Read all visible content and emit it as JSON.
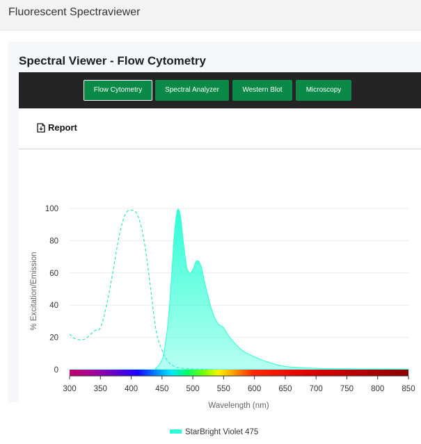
{
  "app": {
    "title": "Fluorescent Spectraviewer"
  },
  "panel": {
    "title": "Spectral Viewer - Flow Cytometry"
  },
  "nav": {
    "tabs": [
      {
        "label": "Flow Cytometry",
        "active": true
      },
      {
        "label": "Spectral Analyzer",
        "active": false
      },
      {
        "label": "Western Blot",
        "active": false
      },
      {
        "label": "Microscopy",
        "active": false
      }
    ]
  },
  "toolbar": {
    "report_label": "Report",
    "report_icon": "document-export-icon"
  },
  "colors": {
    "nav_green": "#0a8a46",
    "series": "#2fffd6",
    "navbar_bg": "#242424"
  },
  "chart_data": {
    "type": "area",
    "xlabel": "Wavelength (nm)",
    "ylabel": "% Excitation/Emission",
    "xlim": [
      300,
      850
    ],
    "ylim": [
      0,
      100
    ],
    "xticks": [
      300,
      350,
      400,
      450,
      500,
      550,
      600,
      650,
      700,
      750,
      800,
      850
    ],
    "yticks": [
      0,
      20,
      40,
      60,
      80,
      100
    ],
    "grid": true,
    "legend_position": "bottom",
    "series": [
      {
        "name": "StarBright Violet 475",
        "kind": "excitation",
        "style": "dashed",
        "x": [
          300,
          310,
          325,
          340,
          350,
          360,
          370,
          380,
          390,
          400,
          410,
          420,
          430,
          440,
          450,
          460,
          470,
          480,
          500,
          550,
          600,
          650,
          700,
          750,
          800,
          850
        ],
        "y": [
          22,
          19,
          19,
          24,
          26,
          40,
          60,
          82,
          96,
          99,
          96,
          82,
          55,
          25,
          12,
          5,
          2,
          1,
          0.5,
          0,
          0,
          0,
          0,
          0,
          0,
          0
        ]
      },
      {
        "name": "StarBright Violet 475",
        "kind": "emission",
        "style": "filled",
        "x": [
          300,
          430,
          440,
          450,
          455,
          460,
          465,
          470,
          475,
          480,
          485,
          490,
          495,
          500,
          505,
          510,
          515,
          520,
          530,
          540,
          550,
          560,
          580,
          600,
          620,
          650,
          700,
          750,
          800,
          850
        ],
        "y": [
          0,
          0,
          1,
          6,
          15,
          30,
          55,
          84,
          99,
          95,
          78,
          64,
          60,
          62,
          67,
          67,
          62,
          53,
          38,
          29,
          26,
          20,
          12,
          8,
          5,
          2,
          0.8,
          0.5,
          0.4,
          0.3
        ]
      }
    ],
    "legend": [
      "StarBright Violet 475"
    ]
  }
}
